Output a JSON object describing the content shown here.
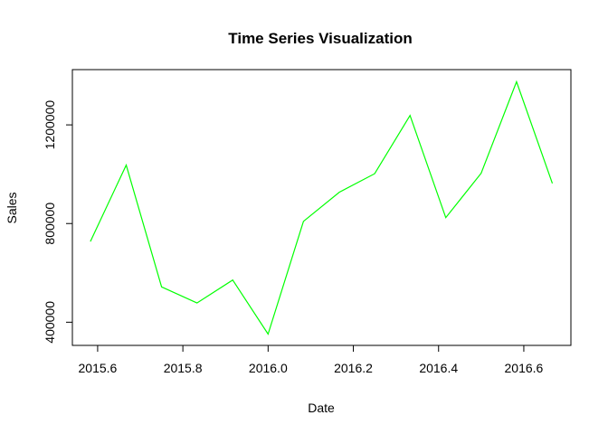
{
  "chart_data": {
    "type": "line",
    "title": "Time Series Visualization",
    "xlabel": "Date",
    "ylabel": "Sales",
    "xlim": [
      2015.58,
      2016.667
    ],
    "ylim": [
      350000,
      1380000
    ],
    "x_ticks": [
      2015.6,
      2015.8,
      2016.0,
      2016.2,
      2016.4,
      2016.6
    ],
    "x_tick_labels": [
      "2015.6",
      "2015.8",
      "2016.0",
      "2016.2",
      "2016.4",
      "2016.6"
    ],
    "y_ticks": [
      400000,
      800000,
      1200000
    ],
    "y_tick_labels": [
      "400000",
      "800000",
      "1200000"
    ],
    "grid": false,
    "colors": {
      "series": "#00ff00",
      "axis": "#000000"
    },
    "series": [
      {
        "x": [
          2015.583,
          2015.667,
          2015.75,
          2015.833,
          2015.917,
          2016.0,
          2016.083,
          2016.167,
          2016.25,
          2016.333,
          2016.417,
          2016.5,
          2016.583,
          2016.667
        ],
        "values": [
          727000,
          1037000,
          543000,
          478000,
          571000,
          352000,
          809000,
          927000,
          1002000,
          1238000,
          824000,
          1004000,
          1375000,
          963000
        ]
      }
    ]
  }
}
